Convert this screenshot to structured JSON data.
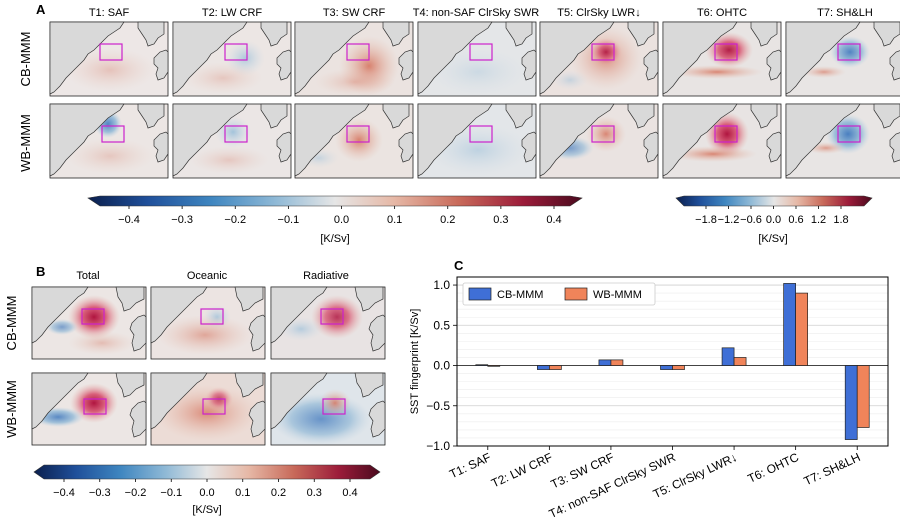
{
  "panel_a": {
    "label": "A",
    "columns": [
      "T1: SAF",
      "T2: LW CRF",
      "T3: SW CRF",
      "T4: non-SAF ClrSky SWR",
      "T5: ClrSky LWR↓",
      "T6: OHTC",
      "T7: SH&LH"
    ],
    "rows": [
      "CB-MMM",
      "WB-MMM"
    ],
    "colorbar_main": {
      "ticks": [
        "−0.4",
        "−0.3",
        "−0.2",
        "−0.1",
        "0.0",
        "0.1",
        "0.2",
        "0.3",
        "0.4"
      ],
      "label": "[K/Sv]"
    },
    "colorbar_wide": {
      "ticks": [
        "−1.8",
        "−1.2",
        "−0.6",
        "0.0",
        "0.6",
        "1.2",
        "1.8"
      ],
      "label": "[K/Sv]"
    }
  },
  "panel_b": {
    "label": "B",
    "columns": [
      "Total",
      "Oceanic",
      "Radiative"
    ],
    "rows": [
      "CB-MMM",
      "WB-MMM"
    ],
    "colorbar": {
      "ticks": [
        "−0.4",
        "−0.3",
        "−0.2",
        "−0.1",
        "0.0",
        "0.1",
        "0.2",
        "0.3",
        "0.4"
      ],
      "label": "[K/Sv]"
    }
  },
  "colors": {
    "cb": "#3f6fd6",
    "wb": "#f0845a",
    "box": "#cc22cc",
    "land": "#d9d9d9"
  },
  "chart_data": {
    "label": "C",
    "type": "bar",
    "categories": [
      "T1: SAF",
      "T2: LW CRF",
      "T3: SW CRF",
      "T4: non-SAF ClrSky SWR",
      "T5: ClrSky LWR↓",
      "T6: OHTC",
      "T7: SH&LH"
    ],
    "series": [
      {
        "name": "CB-MMM",
        "values": [
          0.01,
          -0.05,
          0.07,
          -0.05,
          0.22,
          1.02,
          -0.92
        ]
      },
      {
        "name": "WB-MMM",
        "values": [
          0.0,
          -0.05,
          0.07,
          -0.05,
          0.1,
          0.9,
          -0.77
        ]
      }
    ],
    "ylabel": "SST fingerprint [K/Sv]",
    "ylim": [
      -1.0,
      1.1
    ],
    "yticks": [
      "−1.0",
      "−0.5",
      "0.0",
      "0.5",
      "1.0"
    ],
    "grid": true,
    "legend": "top-left"
  }
}
